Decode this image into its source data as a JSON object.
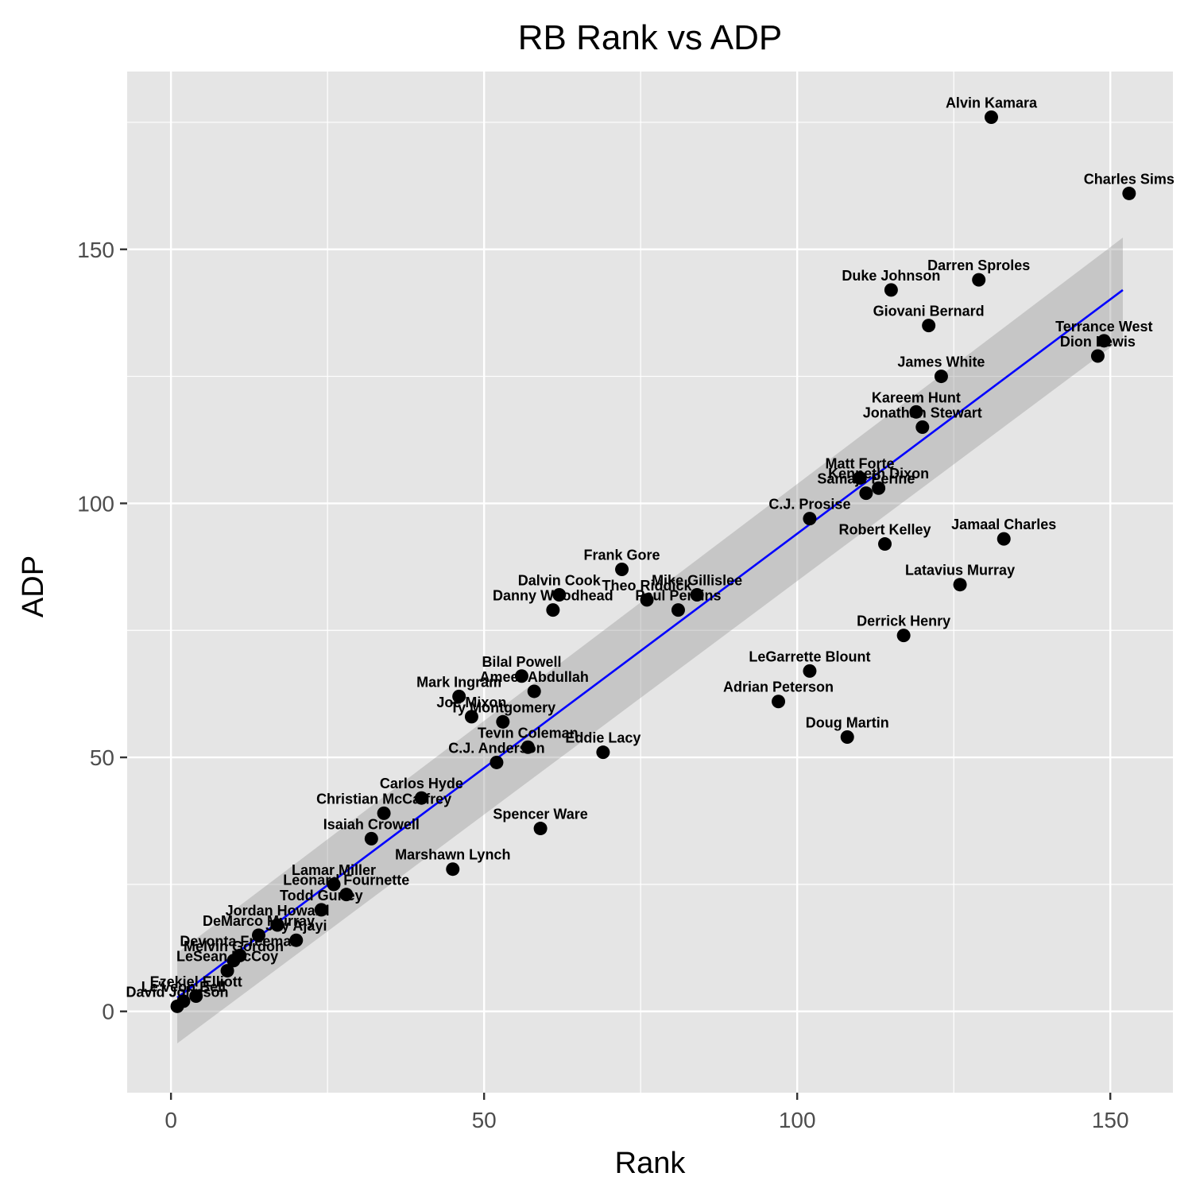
{
  "chart_data": {
    "type": "scatter",
    "title": "RB Rank vs ADP",
    "xlabel": "Rank",
    "ylabel": "ADP",
    "xlim": [
      -7,
      160
    ],
    "ylim": [
      -16,
      185
    ],
    "xticks": [
      0,
      50,
      100,
      150
    ],
    "yticks": [
      0,
      50,
      100,
      150
    ],
    "xtick_labels": [
      "0",
      "50",
      "100",
      "150"
    ],
    "ytick_labels": [
      "0",
      "50",
      "100",
      "150"
    ],
    "grid": true,
    "legend": "none",
    "colors": {
      "panel": "#e5e5e5",
      "point": "#000000",
      "fit_line": "#0000ff",
      "confidence_band": "#999999"
    },
    "fit": {
      "x": [
        1,
        152
      ],
      "y": [
        2.7,
        142.0
      ],
      "band_lower": [
        -6.3,
        132.5
      ],
      "band_upper": [
        11.5,
        152.3
      ]
    },
    "points": [
      {
        "label": "David Johnson",
        "x": 1,
        "y": 1
      },
      {
        "label": "Le'Veon Bell",
        "x": 2,
        "y": 2
      },
      {
        "label": "Ezekiel Elliott",
        "x": 4,
        "y": 3
      },
      {
        "label": "LeSean McCoy",
        "x": 9,
        "y": 8
      },
      {
        "label": "Melvin Gordon",
        "x": 10,
        "y": 10
      },
      {
        "label": "Devonta Freeman",
        "x": 11,
        "y": 11
      },
      {
        "label": "DeMarco Murray",
        "x": 14,
        "y": 15
      },
      {
        "label": "Jay Ajayi",
        "x": 20,
        "y": 14
      },
      {
        "label": "Jordan Howard",
        "x": 17,
        "y": 17
      },
      {
        "label": "Todd Gurley",
        "x": 24,
        "y": 20
      },
      {
        "label": "Leonard Fournette",
        "x": 28,
        "y": 23
      },
      {
        "label": "Lamar Miller",
        "x": 26,
        "y": 25
      },
      {
        "label": "Isaiah Crowell",
        "x": 32,
        "y": 34
      },
      {
        "label": "Christian McCaffrey",
        "x": 34,
        "y": 39
      },
      {
        "label": "Carlos Hyde",
        "x": 40,
        "y": 42
      },
      {
        "label": "Marshawn Lynch",
        "x": 45,
        "y": 28
      },
      {
        "label": "C.J. Anderson",
        "x": 52,
        "y": 49
      },
      {
        "label": "Tevin Coleman",
        "x": 57,
        "y": 52
      },
      {
        "label": "Eddie Lacy",
        "x": 69,
        "y": 51
      },
      {
        "label": "Spencer Ware",
        "x": 59,
        "y": 36
      },
      {
        "label": "Joe Mixon",
        "x": 48,
        "y": 58
      },
      {
        "label": "Ty Montgomery",
        "x": 53,
        "y": 57
      },
      {
        "label": "Mark Ingram",
        "x": 46,
        "y": 62
      },
      {
        "label": "Ameer Abdullah",
        "x": 58,
        "y": 63
      },
      {
        "label": "Bilal Powell",
        "x": 56,
        "y": 66
      },
      {
        "label": "Danny Woodhead",
        "x": 61,
        "y": 79
      },
      {
        "label": "Dalvin Cook",
        "x": 62,
        "y": 82
      },
      {
        "label": "Frank Gore",
        "x": 72,
        "y": 87
      },
      {
        "label": "Theo Riddick",
        "x": 76,
        "y": 81
      },
      {
        "label": "Paul Perkins",
        "x": 81,
        "y": 79
      },
      {
        "label": "Mike Gillislee",
        "x": 84,
        "y": 82
      },
      {
        "label": "Adrian Peterson",
        "x": 97,
        "y": 61
      },
      {
        "label": "LeGarrette Blount",
        "x": 102,
        "y": 67
      },
      {
        "label": "Doug Martin",
        "x": 108,
        "y": 54
      },
      {
        "label": "C.J. Prosise",
        "x": 102,
        "y": 97
      },
      {
        "label": "Robert Kelley",
        "x": 114,
        "y": 92
      },
      {
        "label": "Samaje Perine",
        "x": 111,
        "y": 102
      },
      {
        "label": "Kenneth Dixon",
        "x": 113,
        "y": 103
      },
      {
        "label": "Matt Forte",
        "x": 110,
        "y": 105
      },
      {
        "label": "Derrick Henry",
        "x": 117,
        "y": 74
      },
      {
        "label": "Latavius Murray",
        "x": 126,
        "y": 84
      },
      {
        "label": "Jamaal Charles",
        "x": 133,
        "y": 93
      },
      {
        "label": "Jonathan Stewart",
        "x": 120,
        "y": 115
      },
      {
        "label": "Kareem Hunt",
        "x": 119,
        "y": 118
      },
      {
        "label": "James White",
        "x": 123,
        "y": 125
      },
      {
        "label": "Giovani Bernard",
        "x": 121,
        "y": 135
      },
      {
        "label": "Duke Johnson",
        "x": 115,
        "y": 142
      },
      {
        "label": "Darren Sproles",
        "x": 129,
        "y": 144
      },
      {
        "label": "Dion Lewis",
        "x": 148,
        "y": 129
      },
      {
        "label": "Terrance West",
        "x": 149,
        "y": 132
      },
      {
        "label": "Alvin Kamara",
        "x": 131,
        "y": 176
      },
      {
        "label": "Charles Sims",
        "x": 153,
        "y": 161
      }
    ]
  }
}
